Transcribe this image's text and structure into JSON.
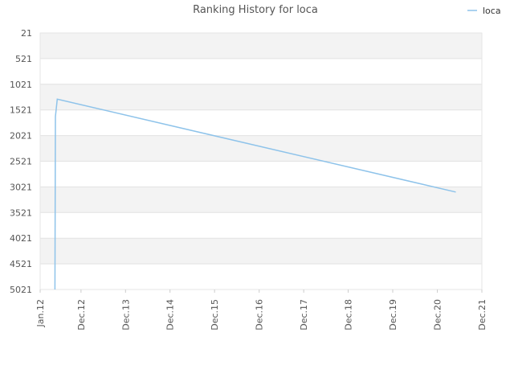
{
  "chart_data": {
    "type": "line",
    "title": "Ranking History for loca",
    "xlabel": "",
    "ylabel": "",
    "y_inverted": true,
    "ylim": [
      21,
      5021
    ],
    "y_ticks": [
      21,
      521,
      1021,
      1521,
      2021,
      2521,
      3021,
      3521,
      4021,
      4521,
      5021
    ],
    "x_ticks": [
      "Jan.12",
      "Dec.12",
      "Dec.13",
      "Dec.14",
      "Dec.15",
      "Dec.16",
      "Dec.17",
      "Dec.18",
      "Dec.19",
      "Dec.20",
      "Dec.21"
    ],
    "x_tick_dates": [
      "2012-01-01",
      "2012-12-01",
      "2013-12-01",
      "2014-12-01",
      "2015-12-01",
      "2016-12-01",
      "2017-12-01",
      "2018-12-01",
      "2019-12-01",
      "2020-12-01",
      "2021-12-01"
    ],
    "grid": true,
    "alternating_bands": true,
    "legend_position": "top-right",
    "series": [
      {
        "name": "loca",
        "color": "#8ec3ea",
        "x": [
          "2012-05-01",
          "2012-05-05",
          "2012-05-20",
          "2021-05-01"
        ],
        "y": [
          5021,
          1651,
          1311,
          3121
        ]
      }
    ]
  }
}
